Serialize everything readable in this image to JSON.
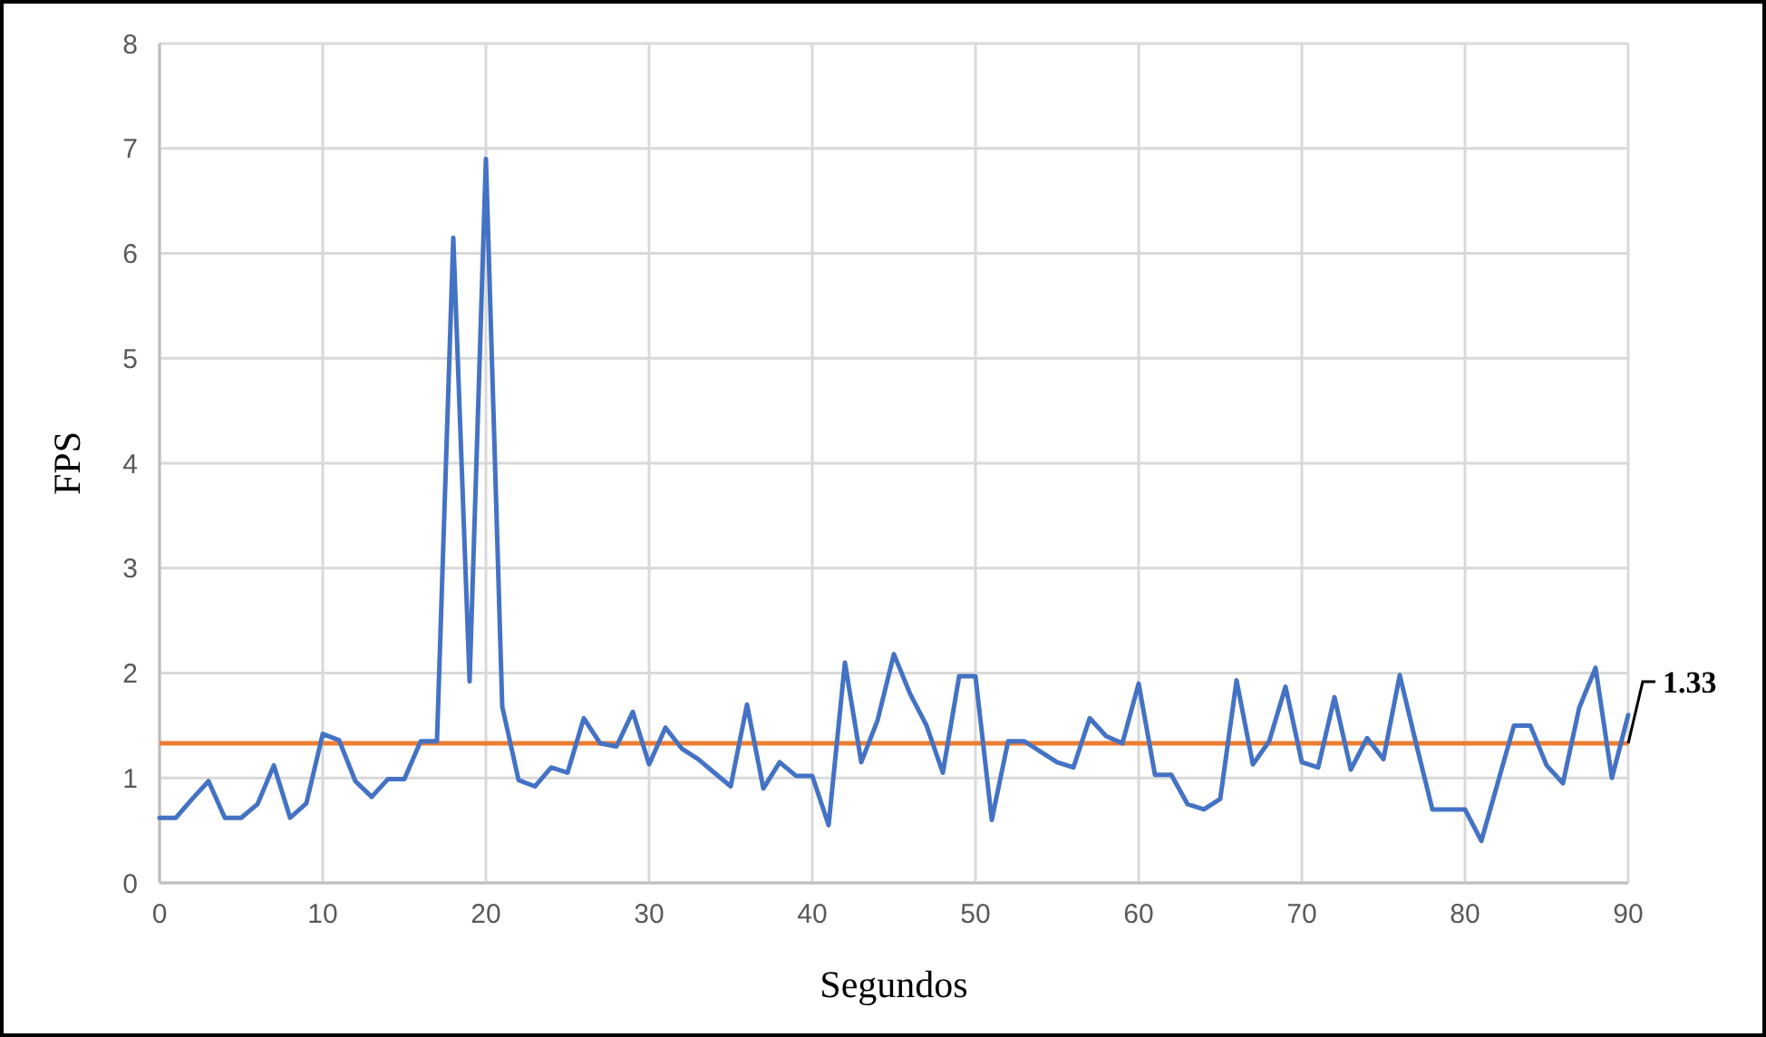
{
  "chart_data": {
    "type": "line",
    "xlabel": "Segundos",
    "ylabel": "FPS",
    "x": [
      0,
      1,
      2,
      3,
      4,
      5,
      6,
      7,
      8,
      9,
      10,
      11,
      12,
      13,
      14,
      15,
      16,
      17,
      18,
      19,
      20,
      21,
      22,
      23,
      24,
      25,
      26,
      27,
      28,
      29,
      30,
      31,
      32,
      33,
      34,
      35,
      36,
      37,
      38,
      39,
      40,
      41,
      42,
      43,
      44,
      45,
      46,
      47,
      48,
      49,
      50,
      51,
      52,
      53,
      54,
      55,
      56,
      57,
      58,
      59,
      60,
      61,
      62,
      63,
      64,
      65,
      66,
      67,
      68,
      69,
      70,
      71,
      72,
      73,
      74,
      75,
      76,
      77,
      78,
      79,
      80,
      81,
      82,
      83,
      84,
      85,
      86,
      87,
      88,
      89,
      90
    ],
    "series": [
      {
        "color": "#4472c4",
        "values": [
          0.62,
          0.62,
          0.8,
          0.97,
          0.62,
          0.62,
          0.75,
          1.12,
          0.62,
          0.76,
          1.42,
          1.36,
          0.97,
          0.82,
          0.99,
          0.99,
          1.35,
          1.35,
          6.15,
          1.92,
          6.9,
          1.68,
          0.98,
          0.92,
          1.1,
          1.05,
          1.57,
          1.33,
          1.3,
          1.63,
          1.13,
          1.48,
          1.28,
          1.18,
          1.05,
          0.92,
          1.7,
          0.9,
          1.15,
          1.02,
          1.02,
          0.55,
          2.1,
          1.15,
          1.55,
          2.18,
          1.8,
          1.5,
          1.05,
          1.97,
          1.97,
          0.6,
          1.35,
          1.35,
          1.25,
          1.15,
          1.1,
          1.57,
          1.4,
          1.33,
          1.9,
          1.03,
          1.03,
          0.75,
          0.7,
          0.8,
          1.93,
          1.13,
          1.35,
          1.87,
          1.15,
          1.1,
          1.77,
          1.08,
          1.38,
          1.18,
          1.98,
          1.33,
          0.7,
          0.7,
          0.7,
          0.4,
          0.95,
          1.5,
          1.5,
          1.12,
          0.95,
          1.67,
          2.05,
          1.0,
          1.6
        ]
      }
    ],
    "ref_lines": [
      {
        "axis": "y",
        "value": 1.33,
        "label": "1.33",
        "color": "#ed7d31"
      }
    ],
    "xlim": [
      0,
      90
    ],
    "xticks": [
      0,
      10,
      20,
      30,
      40,
      50,
      60,
      70,
      80,
      90
    ],
    "ylim": [
      0,
      8
    ],
    "yticks": [
      0,
      1,
      2,
      3,
      4,
      5,
      6,
      7,
      8
    ],
    "grid": true,
    "marker": "none",
    "line_style": "solid"
  }
}
